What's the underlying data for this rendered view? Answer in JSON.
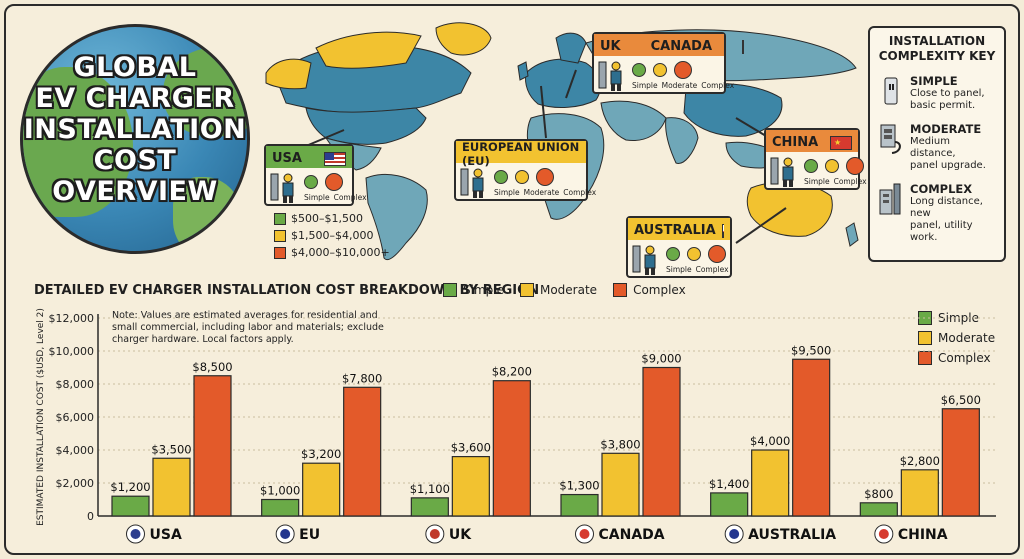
{
  "title_lines": [
    "GLOBAL",
    "EV CHARGER",
    "INSTALLATION",
    "COST OVERVIEW"
  ],
  "colors": {
    "simple": "#6aaa47",
    "moderate": "#f2c230",
    "complex": "#e35a2a",
    "ocean": "#3a87b5",
    "land": "#5c94a7"
  },
  "callouts": {
    "usa": {
      "name": "USA",
      "labels": [
        "Simple",
        "Complex"
      ]
    },
    "uk_canada": {
      "name_left": "UK",
      "name_right": "CANADA",
      "labels": [
        "Simple",
        "Moderate",
        "Complex"
      ]
    },
    "eu": {
      "name": "EUROPEAN UNION (EU)",
      "labels": [
        "Simple",
        "Moderate",
        "Complex"
      ]
    },
    "china": {
      "name": "CHINA",
      "labels": [
        "Simple",
        "Complex"
      ]
    },
    "australia": {
      "name": "AUSTRALIA",
      "labels": [
        "Simple",
        "Complex"
      ]
    }
  },
  "cost_legend": [
    {
      "label": "$500–$1,500",
      "level": "simple"
    },
    {
      "label": "$1,500–$4,000",
      "level": "moderate"
    },
    {
      "label": "$4,000–$10,000+",
      "level": "complex"
    }
  ],
  "complexity_key": {
    "title_lines": [
      "INSTALLATION",
      "COMPLEXITY KEY"
    ],
    "items": [
      {
        "name": "SIMPLE",
        "desc_lines": [
          "Close to panel,",
          "basic permit."
        ],
        "icon": "outlet-icon"
      },
      {
        "name": "MODERATE",
        "desc_lines": [
          "Medium distance,",
          "panel upgrade."
        ],
        "icon": "panel-icon"
      },
      {
        "name": "COMPLEX",
        "desc_lines": [
          "Long distance, new",
          "panel, utility work."
        ],
        "icon": "utility-icon"
      }
    ]
  },
  "chart_heading": "DETAILED EV CHARGER INSTALLATION COST BREAKDOWN BY REGION",
  "legend": [
    "Simple",
    "Moderate",
    "Complex"
  ],
  "note_lines": [
    "Note: Values are estimated averages for residential and",
    "small commercial, including labor and materials; exclude",
    "charger hardware. Local factors apply."
  ],
  "chart_data": {
    "type": "bar",
    "categories": [
      "USA",
      "EU",
      "UK",
      "CANADA",
      "AUSTRALIA",
      "CHINA"
    ],
    "series": [
      {
        "name": "Simple",
        "values": [
          1200,
          1000,
          1100,
          1300,
          1400,
          800
        ]
      },
      {
        "name": "Moderate",
        "values": [
          3500,
          3200,
          3600,
          3800,
          4000,
          2800
        ]
      },
      {
        "name": "Complex",
        "values": [
          8500,
          7800,
          8200,
          9000,
          9500,
          6500
        ]
      }
    ],
    "value_labels": [
      [
        "$1,200",
        "$3,500",
        "$8,500"
      ],
      [
        "$1,000",
        "$3,200",
        "$7,800"
      ],
      [
        "$1,100",
        "$3,600",
        "$8,200"
      ],
      [
        "$1,300",
        "$3,800",
        "$9,000"
      ],
      [
        "$1,400",
        "$4,000",
        "$9,500"
      ],
      [
        "$800",
        "$2,800",
        "$6,500"
      ]
    ],
    "yticks": [
      "0",
      "$2,000",
      "$4,000",
      "$6,000",
      "$8,000",
      "$10,000",
      "$12,000"
    ],
    "ylim": [
      0,
      12000
    ],
    "ylabel": "ESTIMATED INSTALLATION COST ($USD, Level 2)",
    "xlabel": "",
    "title": "DETAILED EV CHARGER INSTALLATION COST BREAKDOWN BY REGION",
    "legend_position": "top and right",
    "grid": true
  }
}
